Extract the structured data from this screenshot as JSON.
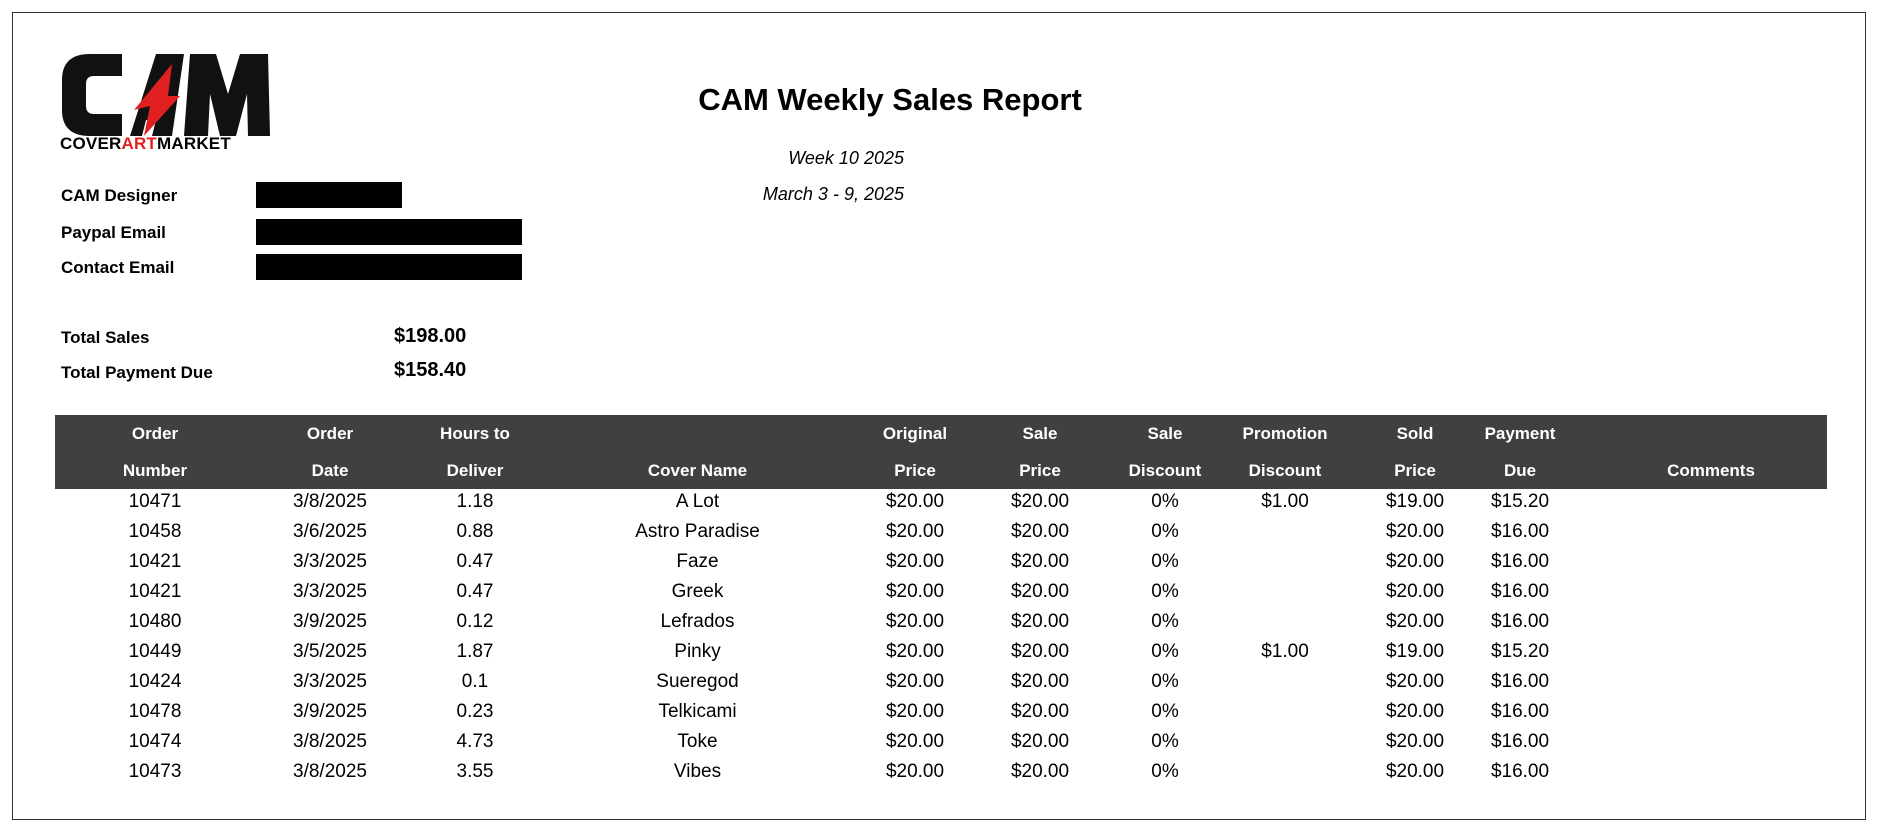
{
  "logo": {
    "mark": "CAM",
    "sub_part1": "COVER",
    "sub_part2": "ART",
    "sub_part3": "MARKET",
    "accent_color": "#e02020"
  },
  "report": {
    "title": "CAM Weekly Sales Report",
    "week": "Week 10 2025",
    "dates": "March 3 - 9, 2025"
  },
  "info": {
    "designer_label": "CAM Designer",
    "paypal_label": "Paypal Email",
    "contact_label": "Contact Email"
  },
  "totals": {
    "sales_label": "Total Sales",
    "sales_value": "$198.00",
    "payment_label": "Total Payment Due",
    "payment_value": "$158.40"
  },
  "table": {
    "header_bg": "#404040",
    "headers": [
      [
        "Order",
        "Number"
      ],
      [
        "Order",
        "Date"
      ],
      [
        "Hours to",
        "Deliver"
      ],
      [
        "",
        "Cover Name"
      ],
      [
        "Original",
        "Price"
      ],
      [
        "Sale",
        "Price"
      ],
      [
        "Sale",
        "Discount"
      ],
      [
        "Promotion",
        "Discount"
      ],
      [
        "Sold",
        "Price"
      ],
      [
        "Payment",
        "Due"
      ],
      [
        "",
        "Comments"
      ]
    ],
    "rows": [
      [
        "10471",
        "3/8/2025",
        "1.18",
        "A Lot",
        "$20.00",
        "$20.00",
        "0%",
        "$1.00",
        "$19.00",
        "$15.20",
        ""
      ],
      [
        "10458",
        "3/6/2025",
        "0.88",
        "Astro Paradise",
        "$20.00",
        "$20.00",
        "0%",
        "",
        "$20.00",
        "$16.00",
        ""
      ],
      [
        "10421",
        "3/3/2025",
        "0.47",
        "Faze",
        "$20.00",
        "$20.00",
        "0%",
        "",
        "$20.00",
        "$16.00",
        ""
      ],
      [
        "10421",
        "3/3/2025",
        "0.47",
        "Greek",
        "$20.00",
        "$20.00",
        "0%",
        "",
        "$20.00",
        "$16.00",
        ""
      ],
      [
        "10480",
        "3/9/2025",
        "0.12",
        "Lefrados",
        "$20.00",
        "$20.00",
        "0%",
        "",
        "$20.00",
        "$16.00",
        ""
      ],
      [
        "10449",
        "3/5/2025",
        "1.87",
        "Pinky",
        "$20.00",
        "$20.00",
        "0%",
        "$1.00",
        "$19.00",
        "$15.20",
        ""
      ],
      [
        "10424",
        "3/3/2025",
        "0.1",
        "Sueregod",
        "$20.00",
        "$20.00",
        "0%",
        "",
        "$20.00",
        "$16.00",
        ""
      ],
      [
        "10478",
        "3/9/2025",
        "0.23",
        "Telkicami",
        "$20.00",
        "$20.00",
        "0%",
        "",
        "$20.00",
        "$16.00",
        ""
      ],
      [
        "10474",
        "3/8/2025",
        "4.73",
        "Toke",
        "$20.00",
        "$20.00",
        "0%",
        "",
        "$20.00",
        "$16.00",
        ""
      ],
      [
        "10473",
        "3/8/2025",
        "3.55",
        "Vibes",
        "$20.00",
        "$20.00",
        "0%",
        "",
        "$20.00",
        "$16.00",
        ""
      ]
    ]
  }
}
